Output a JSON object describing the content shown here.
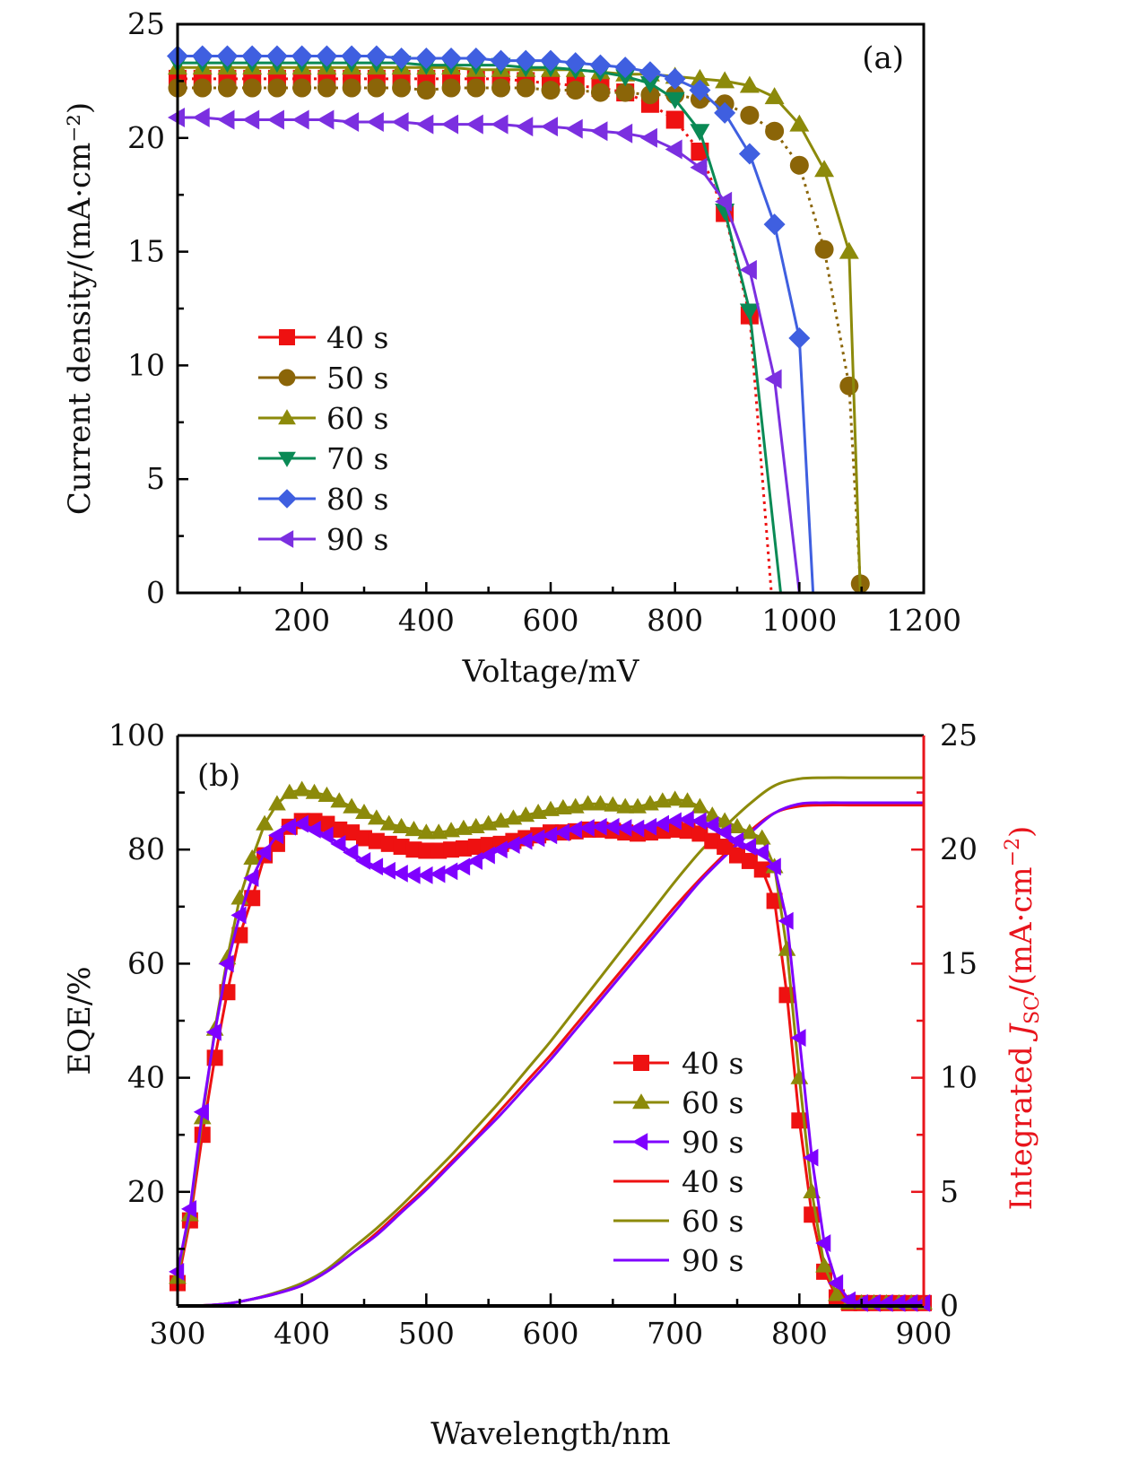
{
  "chart_data": [
    {
      "id": "a",
      "type": "line",
      "panel_label": "(a)",
      "title": "",
      "xlabel": "Voltage/mV",
      "ylabel": "Current density/(mA·cm⁻²)",
      "xlim": [
        0,
        1200
      ],
      "ylim": [
        0,
        25
      ],
      "xticks": [
        200,
        400,
        600,
        800,
        1000,
        1200
      ],
      "yticks": [
        0,
        5,
        10,
        15,
        20,
        25
      ],
      "grid": false,
      "legend_position": "center-left",
      "series": [
        {
          "name": "40 s",
          "color": "#ee1111",
          "marker": "square",
          "x": [
            0,
            40,
            80,
            120,
            160,
            200,
            240,
            280,
            320,
            360,
            400,
            440,
            480,
            520,
            560,
            600,
            640,
            680,
            720,
            760,
            800,
            840,
            880,
            920,
            955
          ],
          "y": [
            22.6,
            22.6,
            22.6,
            22.6,
            22.6,
            22.6,
            22.6,
            22.6,
            22.6,
            22.6,
            22.6,
            22.6,
            22.6,
            22.6,
            22.5,
            22.4,
            22.3,
            22.2,
            22.0,
            21.5,
            20.8,
            19.4,
            16.7,
            12.2,
            0
          ]
        },
        {
          "name": "50 s",
          "color": "#8b6508",
          "marker": "circle",
          "x": [
            0,
            40,
            80,
            120,
            160,
            200,
            240,
            280,
            320,
            360,
            400,
            440,
            480,
            520,
            560,
            600,
            640,
            680,
            720,
            760,
            800,
            840,
            880,
            920,
            960,
            1000,
            1040,
            1080,
            1098
          ],
          "y": [
            22.2,
            22.2,
            22.2,
            22.2,
            22.2,
            22.2,
            22.2,
            22.2,
            22.2,
            22.2,
            22.1,
            22.2,
            22.2,
            22.2,
            22.2,
            22.1,
            22.1,
            22.0,
            22.0,
            21.9,
            21.9,
            21.7,
            21.5,
            21.0,
            20.3,
            18.8,
            15.1,
            9.1,
            0.4
          ]
        },
        {
          "name": "60 s",
          "color": "#8c8a0a",
          "marker": "triangle-up",
          "x": [
            0,
            40,
            80,
            120,
            160,
            200,
            240,
            280,
            320,
            360,
            400,
            440,
            480,
            520,
            560,
            600,
            640,
            680,
            720,
            760,
            800,
            840,
            880,
            920,
            960,
            1000,
            1040,
            1080,
            1098
          ],
          "y": [
            23.1,
            23.1,
            23.1,
            23.1,
            23.1,
            23.1,
            23.1,
            23.1,
            23.1,
            23.1,
            23.1,
            23.1,
            23.0,
            23.0,
            23.0,
            23.0,
            23.0,
            22.9,
            22.8,
            22.8,
            22.7,
            22.6,
            22.5,
            22.3,
            21.8,
            20.6,
            18.6,
            15.0,
            0
          ]
        },
        {
          "name": "70 s",
          "color": "#0a8a55",
          "marker": "triangle-down",
          "x": [
            0,
            40,
            80,
            120,
            160,
            200,
            240,
            280,
            320,
            360,
            400,
            440,
            480,
            520,
            560,
            600,
            640,
            680,
            720,
            760,
            800,
            840,
            880,
            920,
            970
          ],
          "y": [
            23.3,
            23.3,
            23.3,
            23.3,
            23.3,
            23.3,
            23.3,
            23.3,
            23.3,
            23.3,
            23.2,
            23.2,
            23.2,
            23.2,
            23.1,
            23.1,
            23.0,
            22.9,
            22.7,
            22.4,
            21.7,
            20.3,
            16.8,
            12.4,
            0
          ]
        },
        {
          "name": "80 s",
          "color": "#3f5fe0",
          "marker": "diamond",
          "x": [
            0,
            40,
            80,
            120,
            160,
            200,
            240,
            280,
            320,
            360,
            400,
            440,
            480,
            520,
            560,
            600,
            640,
            680,
            720,
            760,
            800,
            840,
            880,
            920,
            960,
            1000,
            1022
          ],
          "y": [
            23.6,
            23.6,
            23.6,
            23.6,
            23.6,
            23.6,
            23.6,
            23.6,
            23.6,
            23.5,
            23.5,
            23.5,
            23.5,
            23.4,
            23.4,
            23.4,
            23.3,
            23.2,
            23.1,
            22.9,
            22.6,
            22.1,
            21.1,
            19.3,
            16.2,
            11.2,
            0
          ]
        },
        {
          "name": "90 s",
          "color": "#7b2fe0",
          "marker": "triangle-left",
          "x": [
            0,
            40,
            80,
            120,
            160,
            200,
            240,
            280,
            320,
            360,
            400,
            440,
            480,
            520,
            560,
            600,
            640,
            680,
            720,
            760,
            800,
            840,
            880,
            920,
            960,
            1000
          ],
          "y": [
            20.9,
            20.9,
            20.8,
            20.8,
            20.8,
            20.8,
            20.8,
            20.7,
            20.7,
            20.7,
            20.6,
            20.6,
            20.6,
            20.6,
            20.5,
            20.5,
            20.4,
            20.3,
            20.2,
            20.0,
            19.5,
            18.7,
            17.2,
            14.2,
            9.4,
            0
          ]
        }
      ]
    },
    {
      "id": "b",
      "type": "line",
      "panel_label": "(b)",
      "title": "",
      "xlabel": "Wavelength/nm",
      "ylabel": "EQE/%",
      "ylabel_right": "Integrated J_SC/(mA·cm⁻²)",
      "ylabel_right_parts": {
        "pre": "Integrated ",
        "J": "J",
        "sub": "SC",
        "post": "/(mA·cm",
        "sup": "−2",
        "end": ")"
      },
      "xlim": [
        300,
        900
      ],
      "ylim": [
        0,
        100
      ],
      "ylim_right": [
        0,
        25
      ],
      "xticks": [
        300,
        400,
        500,
        600,
        700,
        800,
        900
      ],
      "yticks": [
        20,
        40,
        60,
        80,
        100
      ],
      "yticks_right": [
        0,
        5,
        10,
        15,
        20,
        25
      ],
      "right_axis_color": "#e8141c",
      "grid": false,
      "legend_position": "lower-center-right",
      "eqe_series": [
        {
          "name": "40 s",
          "color": "#ee1111",
          "marker": "square",
          "x": [
            300,
            310,
            320,
            330,
            340,
            350,
            360,
            370,
            380,
            390,
            400,
            410,
            420,
            430,
            440,
            450,
            460,
            470,
            480,
            490,
            500,
            510,
            520,
            530,
            540,
            550,
            560,
            570,
            580,
            590,
            600,
            610,
            620,
            630,
            640,
            650,
            660,
            670,
            680,
            690,
            700,
            710,
            720,
            730,
            740,
            750,
            760,
            770,
            780,
            790,
            800,
            810,
            820,
            830,
            840,
            850,
            860,
            870,
            880,
            890,
            900
          ],
          "y": [
            4,
            15,
            30,
            43.5,
            55,
            65,
            71.5,
            79,
            81,
            84,
            85,
            85,
            84.5,
            83.5,
            83,
            82,
            81.5,
            81,
            80.5,
            80,
            79.8,
            79.8,
            80,
            80.2,
            80.5,
            80.8,
            81,
            81.5,
            82,
            82.5,
            83,
            83,
            83.2,
            83.5,
            83.5,
            83.3,
            83,
            82.8,
            83,
            83.3,
            83.5,
            83.3,
            82.8,
            81.5,
            80.5,
            79,
            78,
            76.5,
            71,
            54.5,
            32.5,
            16,
            6,
            1.5,
            0.5,
            0.5,
            0.5,
            0.5,
            0.5,
            0.5,
            0.5
          ]
        },
        {
          "name": "60 s",
          "color": "#8c8a0a",
          "marker": "triangle-up",
          "x": [
            300,
            310,
            320,
            330,
            340,
            350,
            360,
            370,
            380,
            390,
            400,
            410,
            420,
            430,
            440,
            450,
            460,
            470,
            480,
            490,
            500,
            510,
            520,
            530,
            540,
            550,
            560,
            570,
            580,
            590,
            600,
            610,
            620,
            630,
            640,
            650,
            660,
            670,
            680,
            690,
            700,
            710,
            720,
            730,
            740,
            750,
            760,
            770,
            780,
            790,
            800,
            810,
            820,
            830,
            840,
            850,
            860,
            870,
            880,
            890,
            900
          ],
          "y": [
            5,
            16,
            33,
            48.5,
            61,
            71.5,
            78.5,
            84.5,
            88,
            90,
            90.5,
            90,
            89.5,
            88.5,
            87.5,
            86.5,
            85.5,
            84.5,
            84,
            83.5,
            83,
            83,
            83.3,
            83.7,
            84,
            84.5,
            85,
            85.5,
            86,
            86.5,
            87,
            87.3,
            87.5,
            88,
            88,
            87.8,
            87.5,
            87.5,
            88,
            88.5,
            88.8,
            88.5,
            87.5,
            86,
            85,
            84,
            83,
            82,
            77,
            62.5,
            40,
            20,
            7,
            2,
            0.5,
            0.5,
            0.5,
            0.5,
            0.5,
            0.5,
            0.5
          ]
        },
        {
          "name": "90 s",
          "color": "#7f00ff",
          "marker": "triangle-left",
          "x": [
            300,
            310,
            320,
            330,
            340,
            350,
            360,
            370,
            380,
            390,
            400,
            410,
            420,
            430,
            440,
            450,
            460,
            470,
            480,
            490,
            500,
            510,
            520,
            530,
            540,
            550,
            560,
            570,
            580,
            590,
            600,
            610,
            620,
            630,
            640,
            650,
            660,
            670,
            680,
            690,
            700,
            710,
            720,
            730,
            740,
            750,
            760,
            770,
            780,
            790,
            800,
            810,
            820,
            830,
            840,
            850,
            860,
            870,
            880,
            890,
            900
          ],
          "y": [
            6,
            17,
            34,
            48,
            60,
            68.5,
            75,
            79.5,
            82.5,
            84,
            84.5,
            83.5,
            82.5,
            81,
            79.5,
            78,
            77,
            76.3,
            75.8,
            75.5,
            75.5,
            75.7,
            76.2,
            77,
            78,
            79,
            80,
            80.8,
            81.5,
            82,
            82.5,
            83,
            83.5,
            83.8,
            84,
            84,
            83.8,
            83.7,
            84,
            84.5,
            85,
            85.3,
            85,
            84.3,
            83,
            81.5,
            80.5,
            79.5,
            77,
            67.5,
            47,
            26,
            11,
            4,
            1,
            0.5,
            0.5,
            0.5,
            0.5,
            0.5,
            0.5
          ]
        }
      ],
      "integrated_series": [
        {
          "name": "40 s",
          "color": "#ee1111",
          "units": "mA·cm⁻²",
          "x": [
            300,
            320,
            340,
            360,
            380,
            400,
            420,
            440,
            460,
            480,
            500,
            520,
            540,
            560,
            580,
            600,
            620,
            640,
            660,
            680,
            700,
            720,
            740,
            760,
            780,
            800,
            820,
            840,
            860,
            880,
            900
          ],
          "y": [
            0,
            0.02,
            0.1,
            0.3,
            0.55,
            0.9,
            1.5,
            2.3,
            3.2,
            4.2,
            5.2,
            6.3,
            7.4,
            8.6,
            9.8,
            11.0,
            12.3,
            13.6,
            14.9,
            16.2,
            17.5,
            18.7,
            19.8,
            20.8,
            21.6,
            21.9,
            21.95,
            21.95,
            21.95,
            21.95,
            21.95
          ]
        },
        {
          "name": "60 s",
          "color": "#8c8a0a",
          "units": "mA·cm⁻²",
          "x": [
            300,
            320,
            340,
            360,
            380,
            400,
            420,
            440,
            460,
            480,
            500,
            520,
            540,
            560,
            580,
            600,
            620,
            640,
            660,
            680,
            700,
            720,
            740,
            760,
            780,
            800,
            820,
            840,
            860,
            880,
            900
          ],
          "y": [
            0,
            0.02,
            0.1,
            0.3,
            0.6,
            1.0,
            1.6,
            2.5,
            3.4,
            4.4,
            5.5,
            6.6,
            7.8,
            9.0,
            10.3,
            11.6,
            13.0,
            14.4,
            15.8,
            17.2,
            18.6,
            19.9,
            21.0,
            22.0,
            22.8,
            23.1,
            23.15,
            23.15,
            23.15,
            23.15,
            23.15
          ]
        },
        {
          "name": "90 s",
          "color": "#7f00ff",
          "units": "mA·cm⁻²",
          "x": [
            300,
            320,
            340,
            360,
            380,
            400,
            420,
            440,
            460,
            480,
            500,
            520,
            540,
            560,
            580,
            600,
            620,
            640,
            660,
            680,
            700,
            720,
            740,
            760,
            780,
            800,
            820,
            840,
            860,
            880,
            900
          ],
          "y": [
            0,
            0.02,
            0.1,
            0.3,
            0.55,
            0.9,
            1.5,
            2.3,
            3.1,
            4.1,
            5.1,
            6.2,
            7.3,
            8.4,
            9.6,
            10.8,
            12.1,
            13.4,
            14.7,
            16.0,
            17.3,
            18.6,
            19.7,
            20.7,
            21.6,
            22.0,
            22.05,
            22.05,
            22.05,
            22.05,
            22.05
          ]
        }
      ],
      "legend": [
        {
          "label": "40 s",
          "color": "#ee1111",
          "marker": "square"
        },
        {
          "label": "60 s",
          "color": "#8c8a0a",
          "marker": "triangle-up"
        },
        {
          "label": "90 s",
          "color": "#7f00ff",
          "marker": "triangle-left"
        },
        {
          "label": "40 s",
          "color": "#ee1111",
          "marker": "none"
        },
        {
          "label": "60 s",
          "color": "#8c8a0a",
          "marker": "none"
        },
        {
          "label": "90 s",
          "color": "#7f00ff",
          "marker": "none"
        }
      ]
    }
  ]
}
